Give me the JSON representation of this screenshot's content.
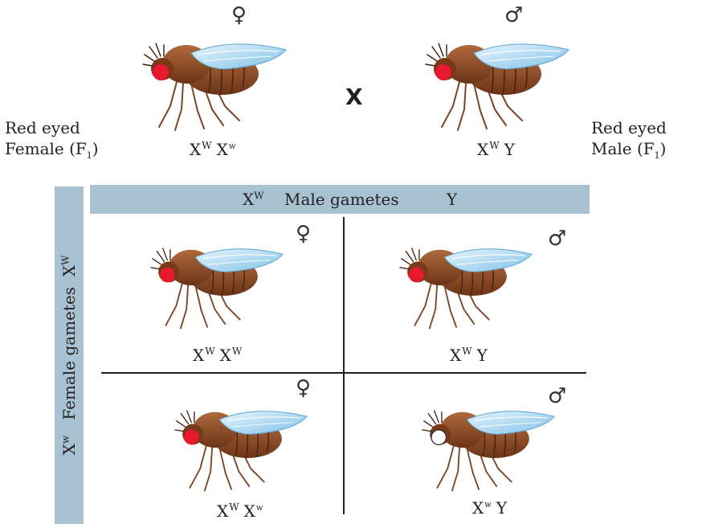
{
  "parents": {
    "female": {
      "label_line1": "Red eyed",
      "label_line2": "Female (F",
      "label_sub": "1",
      "label_close": ")",
      "genotype_a": "X",
      "sup_a": "W",
      "genotype_b": "X",
      "sup_b": "w",
      "symbol": "♀"
    },
    "male": {
      "label_line1": "Red eyed",
      "label_line2": "Male (F",
      "label_sub": "1",
      "label_close": ")",
      "genotype_a": "X",
      "sup_a": "W",
      "genotype_b": "Y",
      "symbol": "♂"
    },
    "cross_symbol": "X"
  },
  "square": {
    "male_header": {
      "x": "X",
      "x_sup": "W",
      "text": "Male gametes",
      "y": "Y"
    },
    "female_header": {
      "x1": "X",
      "x1_sup": "w",
      "text": "Female gametes",
      "x2": "X",
      "x2_sup": "W"
    },
    "cells": [
      {
        "symbol": "♀",
        "g1": "X",
        "s1": "W",
        "g2": "X",
        "s2": "W",
        "eye": "red"
      },
      {
        "symbol": "♂",
        "g1": "X",
        "s1": "W",
        "g2": "Y",
        "s2": "",
        "eye": "red"
      },
      {
        "symbol": "♀",
        "g1": "X",
        "s1": "W",
        "g2": "X",
        "s2": "w",
        "eye": "red"
      },
      {
        "symbol": "♂",
        "g1": "X",
        "s1": "w",
        "g2": "Y",
        "s2": "",
        "eye": "white"
      }
    ]
  },
  "colors": {
    "body": "#8a4a26",
    "wing": "#9fd0ec",
    "red_eye": "#e8192c",
    "white_eye": "#ffffff",
    "bar": "#a9c2d1"
  }
}
